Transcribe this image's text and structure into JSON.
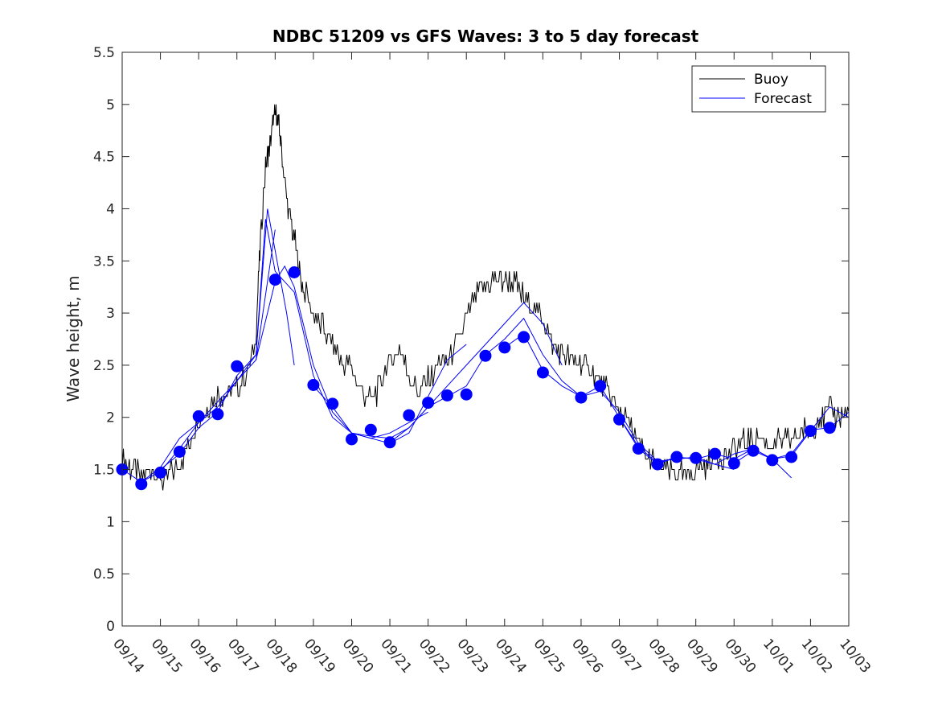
{
  "chart_data": {
    "type": "line",
    "title": "NDBC 51209 vs GFS Waves: 3 to 5 day forecast",
    "xlabel": "",
    "ylabel": "Wave height, m",
    "xlim": [
      0,
      19
    ],
    "ylim": [
      0,
      5.5
    ],
    "yticks": [
      0,
      0.5,
      1,
      1.5,
      2,
      2.5,
      3,
      3.5,
      4,
      4.5,
      5,
      5.5
    ],
    "ytick_labels": [
      "0",
      "0.5",
      "1",
      "1.5",
      "2",
      "2.5",
      "3",
      "3.5",
      "4",
      "4.5",
      "5",
      "5.5"
    ],
    "xticks": [
      0,
      1,
      2,
      3,
      4,
      5,
      6,
      7,
      8,
      9,
      10,
      11,
      12,
      13,
      14,
      15,
      16,
      17,
      18,
      19
    ],
    "xtick_labels": [
      "09/14",
      "09/15",
      "09/16",
      "09/17",
      "09/18",
      "09/19",
      "09/20",
      "09/21",
      "09/22",
      "09/23",
      "09/24",
      "09/25",
      "09/26",
      "09/27",
      "09/28",
      "09/29",
      "09/30",
      "10/01",
      "10/02",
      "10/03"
    ],
    "grid": false,
    "legend_position": "top-right",
    "legend": [
      "Buoy",
      "Forecast"
    ],
    "colors": {
      "buoy": "#000000",
      "forecast": "#0000ff",
      "axis": "#262626"
    },
    "buoy": {
      "name": "Buoy",
      "x": [
        0.0,
        0.25,
        0.5,
        0.75,
        1.0,
        1.25,
        1.5,
        1.75,
        2.0,
        2.25,
        2.5,
        2.75,
        3.0,
        3.25,
        3.5,
        3.6,
        3.75,
        3.85,
        3.95,
        4.05,
        4.15,
        4.3,
        4.45,
        4.6,
        4.75,
        5.0,
        5.25,
        5.5,
        5.75,
        6.0,
        6.25,
        6.5,
        6.75,
        7.0,
        7.25,
        7.5,
        7.75,
        8.0,
        8.25,
        8.5,
        8.75,
        9.0,
        9.25,
        9.5,
        9.75,
        10.0,
        10.25,
        10.5,
        10.75,
        11.0,
        11.25,
        11.5,
        11.75,
        12.0,
        12.25,
        12.5,
        12.75,
        13.0,
        13.25,
        13.5,
        13.75,
        14.0,
        14.25,
        14.5,
        14.75,
        15.0,
        15.25,
        15.5,
        15.75,
        16.0,
        16.25,
        16.5,
        16.75,
        17.0,
        17.25,
        17.5,
        17.75,
        18.0,
        18.25,
        18.5,
        18.75,
        19.0
      ],
      "y": [
        1.65,
        1.5,
        1.45,
        1.5,
        1.4,
        1.45,
        1.55,
        1.75,
        2.0,
        2.1,
        2.25,
        2.2,
        2.3,
        2.4,
        2.75,
        3.6,
        4.4,
        4.6,
        4.85,
        4.9,
        4.65,
        4.1,
        3.8,
        3.5,
        3.2,
        3.0,
        2.85,
        2.7,
        2.55,
        2.45,
        2.25,
        2.15,
        2.3,
        2.55,
        2.65,
        2.4,
        2.25,
        2.35,
        2.5,
        2.55,
        2.7,
        2.95,
        3.15,
        3.25,
        3.35,
        3.3,
        3.3,
        3.15,
        3.05,
        2.95,
        2.7,
        2.6,
        2.55,
        2.5,
        2.45,
        2.35,
        2.2,
        2.05,
        1.95,
        1.75,
        1.6,
        1.55,
        1.5,
        1.45,
        1.45,
        1.5,
        1.55,
        1.6,
        1.65,
        1.7,
        1.75,
        1.8,
        1.8,
        1.75,
        1.75,
        1.8,
        1.85,
        1.9,
        2.0,
        2.05,
        2.0,
        2.05
      ]
    },
    "forecast_runs": [
      {
        "name": "Forecast",
        "x": [
          0.0,
          0.5,
          1.0,
          1.5,
          2.0,
          2.5,
          3.0,
          3.5,
          4.0
        ],
        "y": [
          1.5,
          1.38,
          1.48,
          1.7,
          1.95,
          2.15,
          2.35,
          2.55,
          3.8
        ]
      },
      {
        "name": "Forecast",
        "x": [
          0.5,
          1.0,
          1.5,
          2.0,
          2.5,
          3.0,
          3.5,
          3.8,
          4.0,
          4.3,
          4.5
        ],
        "y": [
          1.38,
          1.52,
          1.8,
          1.95,
          2.1,
          2.35,
          2.6,
          4.0,
          3.6,
          3.0,
          2.5
        ]
      },
      {
        "name": "Forecast",
        "x": [
          1.0,
          1.5,
          2.0,
          2.5,
          3.0,
          3.5,
          3.75,
          4.0,
          4.5,
          5.0,
          5.5,
          6.0,
          6.5,
          7.0,
          7.5,
          8.0
        ],
        "y": [
          1.5,
          1.65,
          1.9,
          2.05,
          2.4,
          2.6,
          3.9,
          3.4,
          3.2,
          2.4,
          2.0,
          1.85,
          1.8,
          1.85,
          1.95,
          2.05
        ]
      },
      {
        "name": "Forecast",
        "x": [
          3.5,
          4.0,
          4.25,
          4.5,
          5.0,
          5.5,
          6.0,
          6.5,
          7.0,
          7.5,
          8.0,
          8.5,
          9.0
        ],
        "y": [
          2.55,
          3.3,
          3.45,
          3.25,
          2.5,
          2.05,
          1.85,
          1.8,
          1.75,
          1.85,
          2.2,
          2.55,
          2.7
        ]
      },
      {
        "name": "Forecast",
        "x": [
          5.0,
          5.5,
          6.0,
          6.5,
          7.0,
          7.5,
          8.0,
          8.5,
          9.0,
          9.5,
          10.0,
          10.5,
          11.0,
          11.5
        ],
        "y": [
          2.3,
          2.1,
          1.85,
          1.82,
          1.8,
          1.9,
          2.1,
          2.3,
          2.5,
          2.7,
          2.9,
          3.1,
          2.9,
          2.5
        ]
      },
      {
        "name": "Forecast",
        "x": [
          7.0,
          7.5,
          8.0,
          8.5,
          9.0,
          9.5,
          10.0,
          10.5,
          11.0,
          11.5,
          12.0,
          12.5,
          13.0,
          13.5,
          14.0,
          14.5,
          15.0,
          15.5,
          16.0
        ],
        "y": [
          1.76,
          1.9,
          2.1,
          2.2,
          2.3,
          2.6,
          2.75,
          2.95,
          2.6,
          2.35,
          2.2,
          2.25,
          2.05,
          1.75,
          1.58,
          1.6,
          1.62,
          1.55,
          1.5
        ]
      },
      {
        "name": "Forecast",
        "x": [
          10.0,
          10.5,
          11.0,
          11.5,
          12.0,
          12.5,
          13.0,
          13.5,
          14.0,
          14.5,
          15.0,
          15.5,
          16.0,
          16.5,
          17.0,
          17.5
        ],
        "y": [
          2.67,
          2.8,
          2.45,
          2.3,
          2.2,
          2.3,
          2.0,
          1.72,
          1.56,
          1.62,
          1.6,
          1.55,
          1.65,
          1.7,
          1.6,
          1.42
        ]
      },
      {
        "name": "Forecast",
        "x": [
          13.0,
          13.5,
          14.0,
          14.5,
          15.0,
          15.5,
          16.0,
          16.5,
          17.0,
          17.5,
          18.0,
          18.5,
          19.0
        ],
        "y": [
          2.0,
          1.7,
          1.55,
          1.62,
          1.6,
          1.65,
          1.6,
          1.7,
          1.6,
          1.65,
          1.88,
          1.9,
          2.05
        ]
      },
      {
        "name": "Forecast",
        "x": [
          16.0,
          16.5,
          17.0,
          17.5,
          18.0,
          18.5,
          19.0
        ],
        "y": [
          1.56,
          1.68,
          1.6,
          1.63,
          1.87,
          2.1,
          2.0
        ]
      }
    ],
    "forecast_markers": {
      "x": [
        0.0,
        0.5,
        1.0,
        1.5,
        2.0,
        2.5,
        3.0,
        4.0,
        4.5,
        5.0,
        5.5,
        6.0,
        6.5,
        7.0,
        7.5,
        8.0,
        8.5,
        9.0,
        9.5,
        10.0,
        10.5,
        11.0,
        12.0,
        12.5,
        13.0,
        13.5,
        14.0,
        14.5,
        15.0,
        15.5,
        16.0,
        16.5,
        17.0,
        17.5,
        18.0,
        18.5
      ],
      "y": [
        1.5,
        1.36,
        1.47,
        1.67,
        2.01,
        2.03,
        2.49,
        3.32,
        3.39,
        2.31,
        2.13,
        1.79,
        1.88,
        1.76,
        2.02,
        2.14,
        2.21,
        2.22,
        2.59,
        2.67,
        2.77,
        2.43,
        2.19,
        2.3,
        1.98,
        1.7,
        1.55,
        1.62,
        1.61,
        1.65,
        1.56,
        1.68,
        1.59,
        1.62,
        1.87,
        1.9
      ]
    }
  }
}
